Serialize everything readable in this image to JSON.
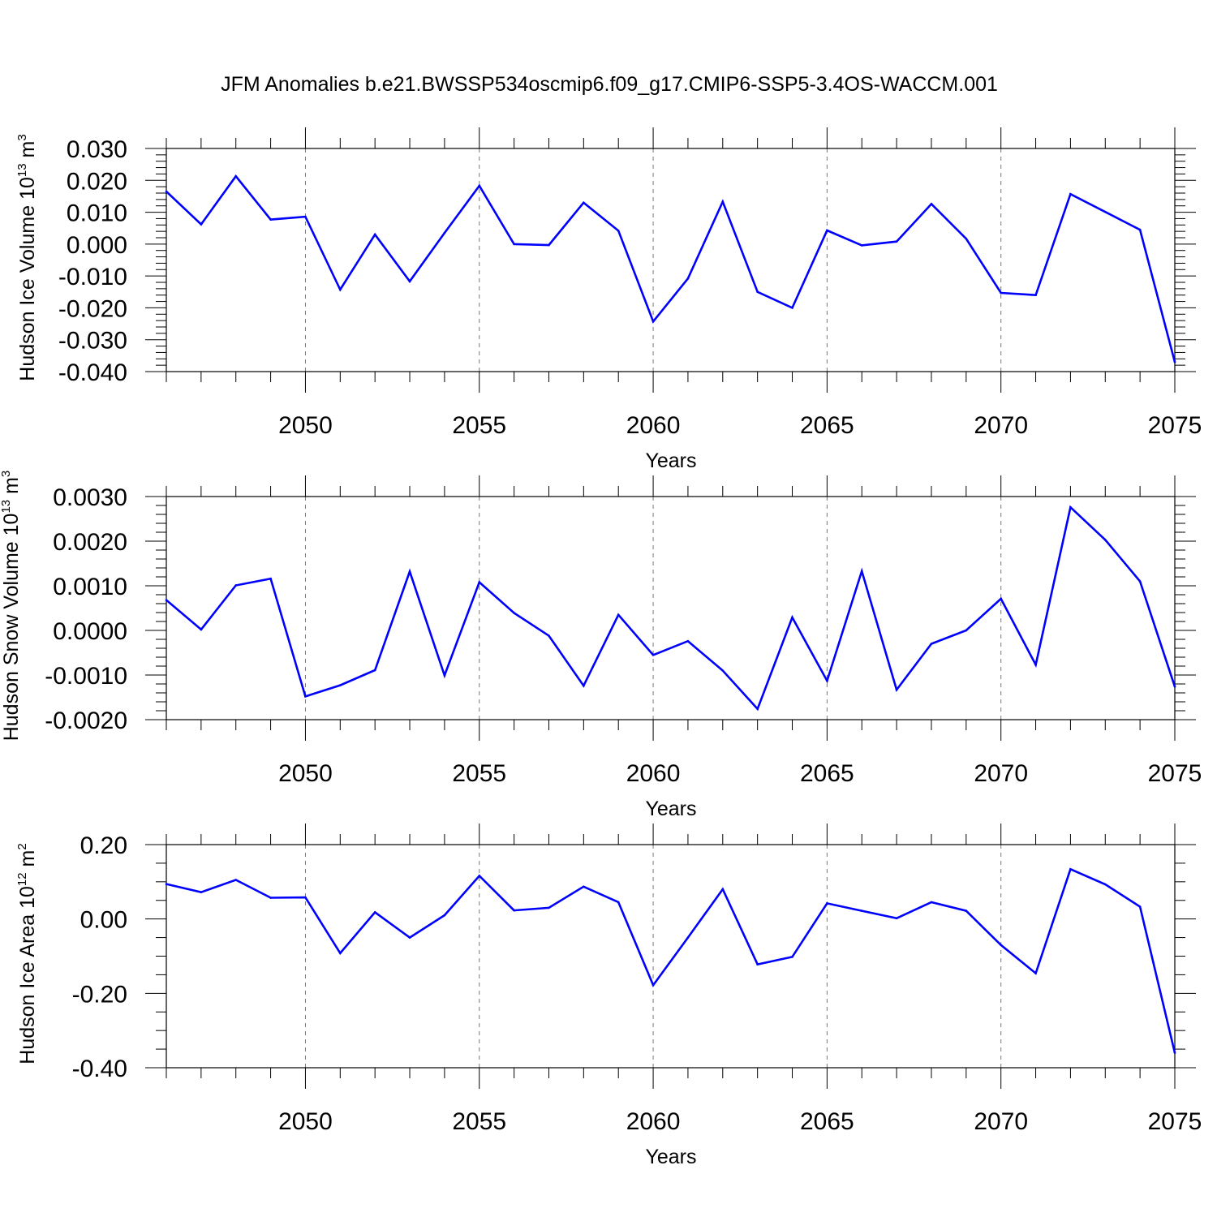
{
  "title": "JFM Anomalies b.e21.BWSSP534oscmip6.f09_g17.CMIP6-SSP5-3.4OS-WACCM.001",
  "line_color": "#0000ff",
  "grid_color": "#777777",
  "chart_data": [
    {
      "type": "line",
      "ylabel": "Hudson Ice Volume 10",
      "ylabel_exp": "13",
      "ylabel_unit": " m",
      "ylabel_unit_exp": "3",
      "xlabel": "Years",
      "xlim": [
        2046,
        2075
      ],
      "ylim": [
        -0.04,
        0.03
      ],
      "yticks": [
        0.03,
        0.02,
        0.01,
        0.0,
        -0.01,
        -0.02,
        -0.03,
        -0.04
      ],
      "ytick_labels": [
        "0.030",
        "0.020",
        "0.010",
        "0.000",
        "-0.010",
        "-0.020",
        "-0.030",
        "-0.040"
      ],
      "xticks": [
        2050,
        2055,
        2060,
        2065,
        2070,
        2075
      ],
      "xtick_labels": [
        "2050",
        "2055",
        "2060",
        "2065",
        "2070",
        "2075"
      ],
      "x": [
        2046,
        2047,
        2048,
        2049,
        2050,
        2051,
        2052,
        2053,
        2054,
        2055,
        2056,
        2057,
        2058,
        2059,
        2060,
        2061,
        2062,
        2063,
        2064,
        2065,
        2066,
        2067,
        2068,
        2069,
        2070,
        2071,
        2072,
        2073,
        2074,
        2075
      ],
      "series": [
        {
          "values": [
            0.0165,
            0.0062,
            0.0213,
            0.0077,
            0.0086,
            -0.0143,
            0.003,
            -0.0117,
            0.0035,
            0.0183,
            0.0,
            -0.0003,
            0.013,
            0.0042,
            -0.0243,
            -0.0108,
            0.0133,
            -0.015,
            -0.02,
            0.0043,
            -0.0004,
            0.0008,
            0.0126,
            0.0017,
            -0.0153,
            -0.016,
            0.0157,
            0.0101,
            0.0045,
            -0.037
          ]
        }
      ]
    },
    {
      "type": "line",
      "ylabel": "Hudson Snow Volume 10",
      "ylabel_exp": "13",
      "ylabel_unit": " m",
      "ylabel_unit_exp": "3",
      "xlabel": "Years",
      "xlim": [
        2046,
        2075
      ],
      "ylim": [
        -0.002,
        0.003
      ],
      "yticks": [
        0.003,
        0.002,
        0.001,
        0.0,
        -0.001,
        -0.002
      ],
      "ytick_labels": [
        "0.0030",
        "0.0020",
        "0.0010",
        "0.0000",
        "-0.0010",
        "-0.0020"
      ],
      "xticks": [
        2050,
        2055,
        2060,
        2065,
        2070,
        2075
      ],
      "xtick_labels": [
        "2050",
        "2055",
        "2060",
        "2065",
        "2070",
        "2075"
      ],
      "x": [
        2046,
        2047,
        2048,
        2049,
        2050,
        2051,
        2052,
        2053,
        2054,
        2055,
        2056,
        2057,
        2058,
        2059,
        2060,
        2061,
        2062,
        2063,
        2064,
        2065,
        2066,
        2067,
        2068,
        2069,
        2070,
        2071,
        2072,
        2073,
        2074,
        2075
      ],
      "series": [
        {
          "values": [
            0.00068,
            2e-05,
            0.00101,
            0.00116,
            -0.00148,
            -0.00123,
            -0.00089,
            0.00132,
            -0.00101,
            0.00108,
            0.00039,
            -0.00012,
            -0.00124,
            0.00035,
            -0.00055,
            -0.00024,
            -0.0009,
            -0.00176,
            0.00029,
            -0.00113,
            0.00133,
            -0.00133,
            -0.0003,
            0.0,
            0.00071,
            -0.00077,
            0.00276,
            0.00203,
            0.0011,
            -0.00126
          ]
        }
      ]
    },
    {
      "type": "line",
      "ylabel": "Hudson Ice Area 10",
      "ylabel_exp": "12",
      "ylabel_unit": " m",
      "ylabel_unit_exp": "2",
      "xlabel": "Years",
      "xlim": [
        2046,
        2075
      ],
      "ylim": [
        -0.4,
        0.2
      ],
      "yticks": [
        0.2,
        0.0,
        -0.2,
        -0.4
      ],
      "ytick_labels": [
        "0.20",
        "0.00",
        "-0.20",
        "-0.40"
      ],
      "xticks": [
        2050,
        2055,
        2060,
        2065,
        2070,
        2075
      ],
      "xtick_labels": [
        "2050",
        "2055",
        "2060",
        "2065",
        "2070",
        "2075"
      ],
      "x": [
        2046,
        2047,
        2048,
        2049,
        2050,
        2051,
        2052,
        2053,
        2054,
        2055,
        2056,
        2057,
        2058,
        2059,
        2060,
        2061,
        2062,
        2063,
        2064,
        2065,
        2066,
        2067,
        2068,
        2069,
        2070,
        2071,
        2072,
        2073,
        2074,
        2075
      ],
      "series": [
        {
          "values": [
            0.094,
            0.072,
            0.105,
            0.057,
            0.058,
            -0.092,
            0.018,
            -0.05,
            0.01,
            0.116,
            0.023,
            0.03,
            0.087,
            0.045,
            -0.178,
            -0.05,
            0.08,
            -0.122,
            -0.102,
            0.042,
            0.022,
            0.002,
            0.045,
            0.022,
            -0.07,
            -0.146,
            0.134,
            0.093,
            0.033,
            -0.36
          ]
        }
      ]
    }
  ]
}
